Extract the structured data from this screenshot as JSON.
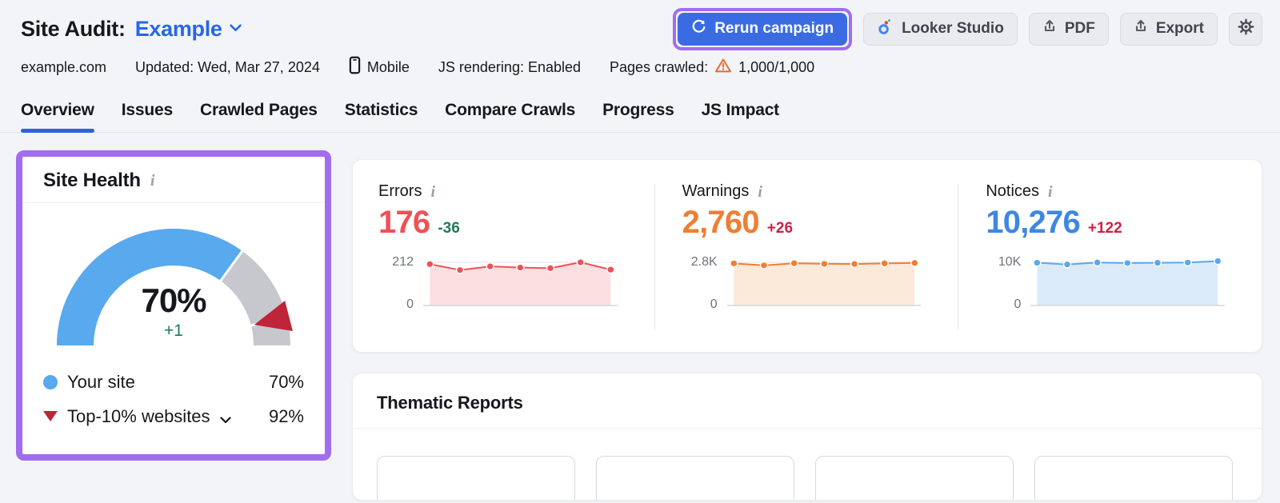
{
  "header": {
    "title": "Site Audit:",
    "project_selector": "Example",
    "rerun_button": "Rerun campaign",
    "looker_button": "Looker Studio",
    "pdf_button": "PDF",
    "export_button": "Export"
  },
  "subheader": {
    "domain": "example.com",
    "updated": "Updated: Wed, Mar 27, 2024",
    "device": "Mobile",
    "js_rendering": "JS rendering: Enabled",
    "pages_crawled_label": "Pages crawled:",
    "pages_crawled_value": "1,000/1,000"
  },
  "tabs": [
    {
      "label": "Overview",
      "active": true
    },
    {
      "label": "Issues"
    },
    {
      "label": "Crawled Pages"
    },
    {
      "label": "Statistics"
    },
    {
      "label": "Compare Crawls"
    },
    {
      "label": "Progress"
    },
    {
      "label": "JS Impact"
    }
  ],
  "site_health": {
    "title": "Site Health",
    "score_label": "70%",
    "delta": "+1",
    "legend": [
      {
        "label": "Your site",
        "value": "70%",
        "marker": "blue-circle"
      },
      {
        "label": "Top-10% websites",
        "value": "92%",
        "marker": "red-triangle-down",
        "has_dropdown": true
      }
    ]
  },
  "thematic": {
    "title": "Thematic Reports",
    "placeholder_cards": 4
  },
  "colors": {
    "highlight_purple": "#a26cf0",
    "primary_button_blue": "#3a6be2",
    "link_blue": "#2667e8",
    "active_tab_blue": "#2b62dd",
    "warning_icon_orange": "#e86c2c"
  },
  "chart_data": [
    {
      "type": "gauge",
      "title": "Site Health",
      "value": 70,
      "value_label": "70%",
      "delta": "+1",
      "benchmark": 92,
      "benchmark_label": "92%",
      "range": [
        0,
        100
      ],
      "value_color": "#58a9ee",
      "rest_color": "#c6c8cd",
      "benchmark_marker_color": "#bf2438"
    },
    {
      "type": "area",
      "title": "Errors",
      "current": "176",
      "delta": "-36",
      "delta_color": "#1c7c54",
      "number_color": "#ee5157",
      "line_color": "#ee5157",
      "fill_color": "#fbdfe0",
      "ymax": 212,
      "ymax_label": "212",
      "ymin_label": "0",
      "values": [
        203,
        174,
        192,
        186,
        183,
        212,
        176
      ]
    },
    {
      "type": "area",
      "title": "Warnings",
      "current": "2,760",
      "delta": "+26",
      "delta_color": "#cf1f45",
      "number_color": "#ef7e33",
      "line_color": "#ef7e33",
      "fill_color": "#fbe9da",
      "ymax": 2800,
      "ymax_label": "2.8K",
      "ymin_label": "0",
      "values": [
        2730,
        2600,
        2740,
        2700,
        2690,
        2730,
        2760
      ]
    },
    {
      "type": "area",
      "title": "Notices",
      "current": "10,276",
      "delta": "+122",
      "delta_color": "#cf1f45",
      "number_color": "#3e87e2",
      "line_color": "#58a9ee",
      "fill_color": "#daeaf8",
      "ymax": 10000,
      "ymax_label": "10K",
      "ymin_label": "0",
      "values": [
        9900,
        9500,
        9950,
        9830,
        9880,
        9940,
        10276
      ]
    }
  ]
}
